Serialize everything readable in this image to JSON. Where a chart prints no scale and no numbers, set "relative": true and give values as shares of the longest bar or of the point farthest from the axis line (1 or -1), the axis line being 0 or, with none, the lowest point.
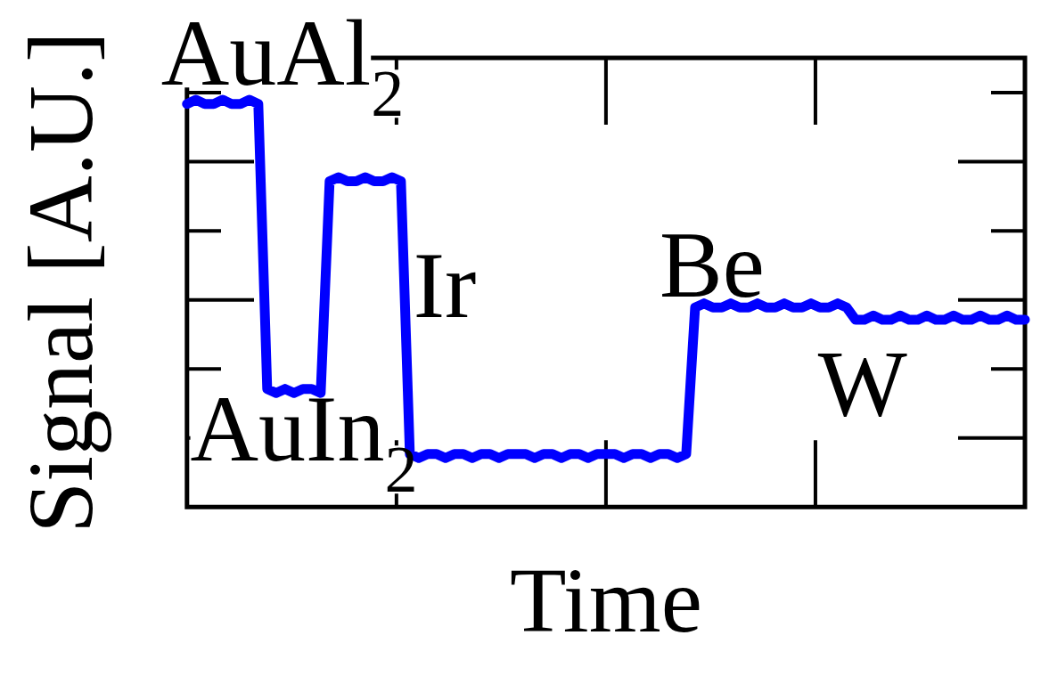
{
  "chart_data": {
    "type": "line",
    "xlabel": "Time",
    "ylabel": "Signal [A.U.]",
    "relative": true,
    "annotations": [
      "AuAl$_{2}$",
      "AuIn$_{2}$",
      "Ir",
      "Be",
      "W"
    ],
    "categories": [
      null,
      null,
      null,
      null,
      null,
      null,
      null,
      null,
      null,
      null,
      null,
      null,
      null,
      null,
      null,
      null,
      null,
      null,
      null,
      null,
      null,
      null,
      null,
      null,
      null,
      null,
      null,
      null,
      null,
      null,
      null,
      null,
      null,
      null,
      null,
      null,
      null,
      null,
      null,
      null,
      null,
      null,
      null,
      null,
      null,
      null,
      null,
      null,
      null,
      null,
      null,
      null,
      null,
      null,
      null,
      null,
      null,
      null,
      null,
      null,
      null,
      null,
      null,
      null,
      null,
      null,
      null,
      null,
      null,
      null,
      null,
      null,
      null,
      null,
      null,
      null,
      null,
      null,
      null,
      null,
      null,
      null,
      null,
      null,
      null,
      null,
      null,
      null,
      null,
      null,
      null,
      null,
      null,
      null,
      null
    ],
    "color": "#0000ff",
    "values": [
      0.99,
      1,
      0.99,
      0.99,
      1,
      0.99,
      0.99,
      1,
      0.99,
      0.29,
      0.28,
      0.29,
      0.28,
      0.29,
      0.29,
      0.28,
      0.8,
      0.81,
      0.8,
      0.8,
      0.81,
      0.8,
      0.8,
      0.81,
      0.8,
      0.13,
      0.12,
      0.13,
      0.13,
      0.12,
      0.13,
      0.13,
      0.12,
      0.13,
      0.13,
      0.12,
      0.13,
      0.13,
      0.13,
      0.12,
      0.13,
      0.13,
      0.12,
      0.13,
      0.13,
      0.12,
      0.13,
      0.13,
      0.13,
      0.12,
      0.13,
      0.13,
      0.12,
      0.13,
      0.13,
      0.12,
      0.13,
      0.49,
      0.5,
      0.49,
      0.49,
      0.5,
      0.49,
      0.49,
      0.5,
      0.49,
      0.49,
      0.5,
      0.49,
      0.49,
      0.5,
      0.49,
      0.49,
      0.5,
      0.49,
      0.46,
      0.46,
      0.47,
      0.46,
      0.46,
      0.47,
      0.46,
      0.46,
      0.47,
      0.46,
      0.46,
      0.47,
      0.46,
      0.46,
      0.47,
      0.46,
      0.46,
      0.47,
      0.46,
      0.46
    ]
  }
}
